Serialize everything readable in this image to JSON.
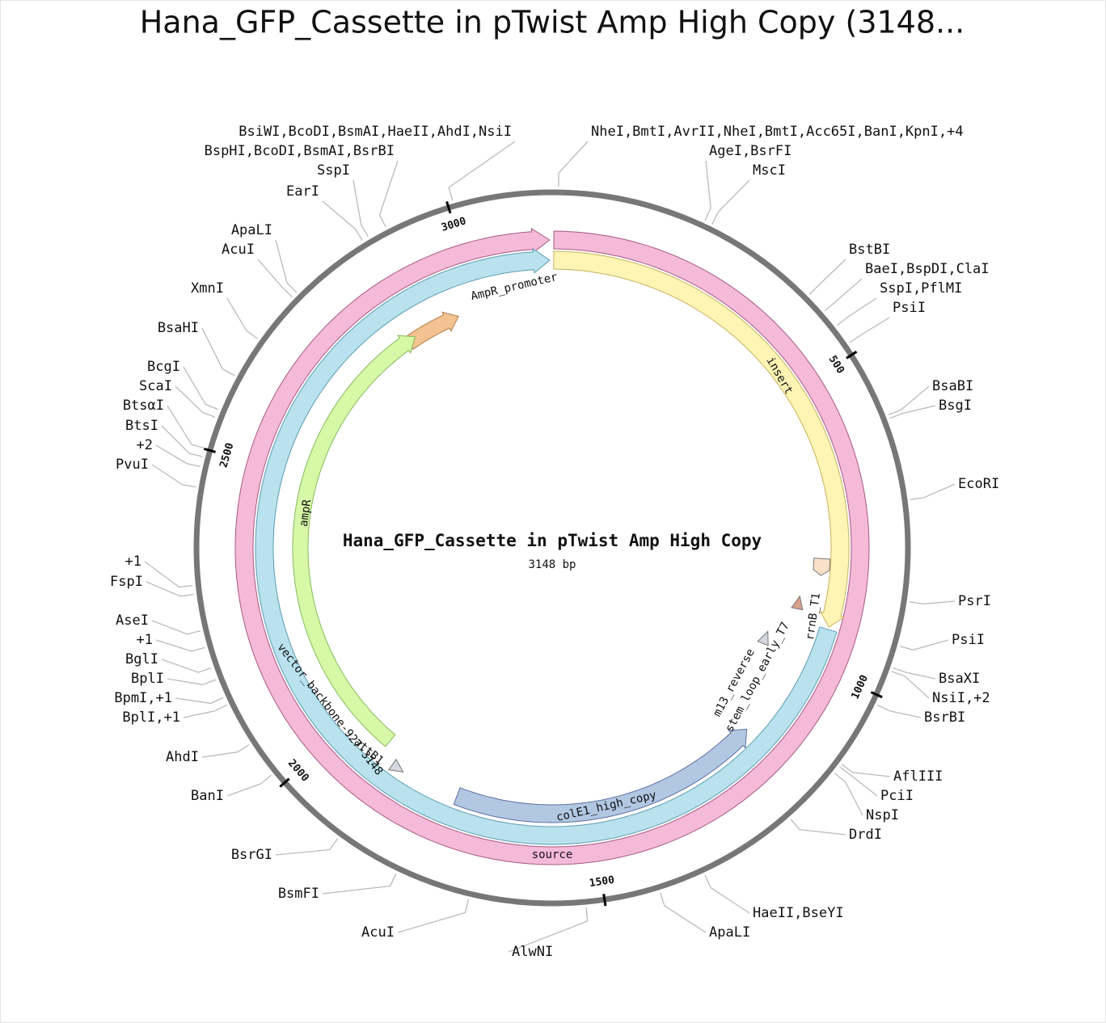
{
  "header": {
    "title": "Hana_GFP_Cassette in pTwist Amp High Copy (3148..."
  },
  "map": {
    "name": "Hana_GFP_Cassette in pTwist Amp High Copy",
    "length_label": "3148 bp",
    "length": 3148,
    "ticks": [
      500,
      1000,
      1500,
      2000,
      2500,
      3000
    ],
    "features": [
      {
        "label": "source"
      },
      {
        "label": "vector_backbone-927-3148"
      },
      {
        "label": "insert"
      },
      {
        "label": "AmpR_promoter"
      },
      {
        "label": "ampR"
      },
      {
        "label": "colE1_high_copy"
      },
      {
        "label": "rrnB_T1"
      },
      {
        "label": "stem_loop_early_T7"
      },
      {
        "label": "m13_reverse"
      },
      {
        "label": "attB1"
      }
    ],
    "enzymes": [
      "NheI,BmtI,AvrII,NheI,BmtI,Acc65I,BanI,KpnI,+4",
      "AgeI,BsrFI",
      "MscI",
      "BstBI",
      "BaeI,BspDI,ClaI",
      "SspI,PflMI",
      "PsiI",
      "BsaBI",
      "BsgI",
      "EcoRI",
      "PsrI",
      "PsiI",
      "BsaXI",
      "NsiI,+2",
      "BsrBI",
      "AflIII",
      "PciI",
      "NspI",
      "DrdI",
      "HaeII,BseYI",
      "ApaLI",
      "AlwNI",
      "AcuI",
      "BsmFI",
      "BsrGI",
      "BanI",
      "AhdI",
      "BplI,+1",
      "BpmI,+1",
      "BplI",
      "BglI",
      "+1",
      "AseI",
      "FspI",
      "+1",
      "PvuI",
      "+2",
      "BtsI",
      "BtsαI",
      "ScaI",
      "BcgI",
      "BsaHI",
      "XmnI",
      "AcuI",
      "ApaLI",
      "EarI",
      "SspI",
      "BspHI,BcoDI,BsmAI,BsrBI",
      "BsiWI,BcoDI,BsmAI,HaeII,AhdI,NsiI"
    ]
  }
}
